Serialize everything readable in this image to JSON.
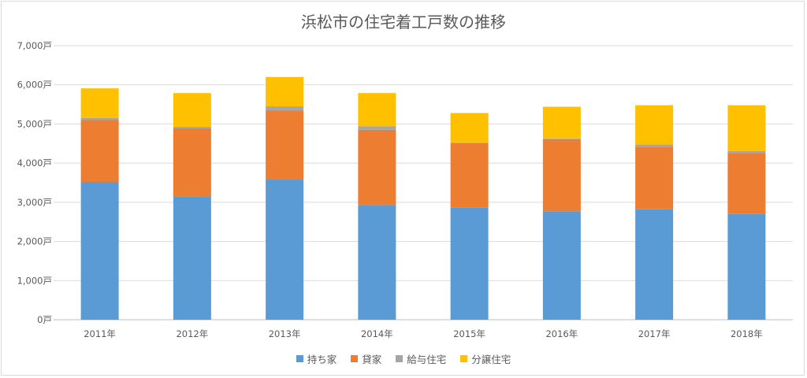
{
  "chart_data": {
    "type": "bar",
    "stacked": true,
    "title": "浜松市の住宅着工戸数の推移",
    "categories": [
      "2011年",
      "2012年",
      "2013年",
      "2014年",
      "2015年",
      "2016年",
      "2017年",
      "2018年"
    ],
    "y_ticks": [
      "0戸",
      "1,000戸",
      "2,000戸",
      "3,000戸",
      "4,000戸",
      "5,000戸",
      "6,000戸",
      "7,000戸"
    ],
    "ylim": [
      0,
      7000
    ],
    "grid": true,
    "legend_position": "bottom",
    "series": [
      {
        "name": "持ち家",
        "color": "#5b9bd5",
        "values": [
          3520,
          3150,
          3580,
          2930,
          2860,
          2770,
          2820,
          2700
        ]
      },
      {
        "name": "貸家",
        "color": "#ed7d31",
        "values": [
          1580,
          1740,
          1760,
          1920,
          1650,
          1840,
          1600,
          1560
        ]
      },
      {
        "name": "給与住宅",
        "color": "#a5a5a5",
        "values": [
          50,
          40,
          110,
          90,
          20,
          20,
          60,
          50
        ]
      },
      {
        "name": "分譲住宅",
        "color": "#ffc000",
        "values": [
          760,
          860,
          750,
          850,
          750,
          810,
          1000,
          1170
        ]
      }
    ]
  }
}
